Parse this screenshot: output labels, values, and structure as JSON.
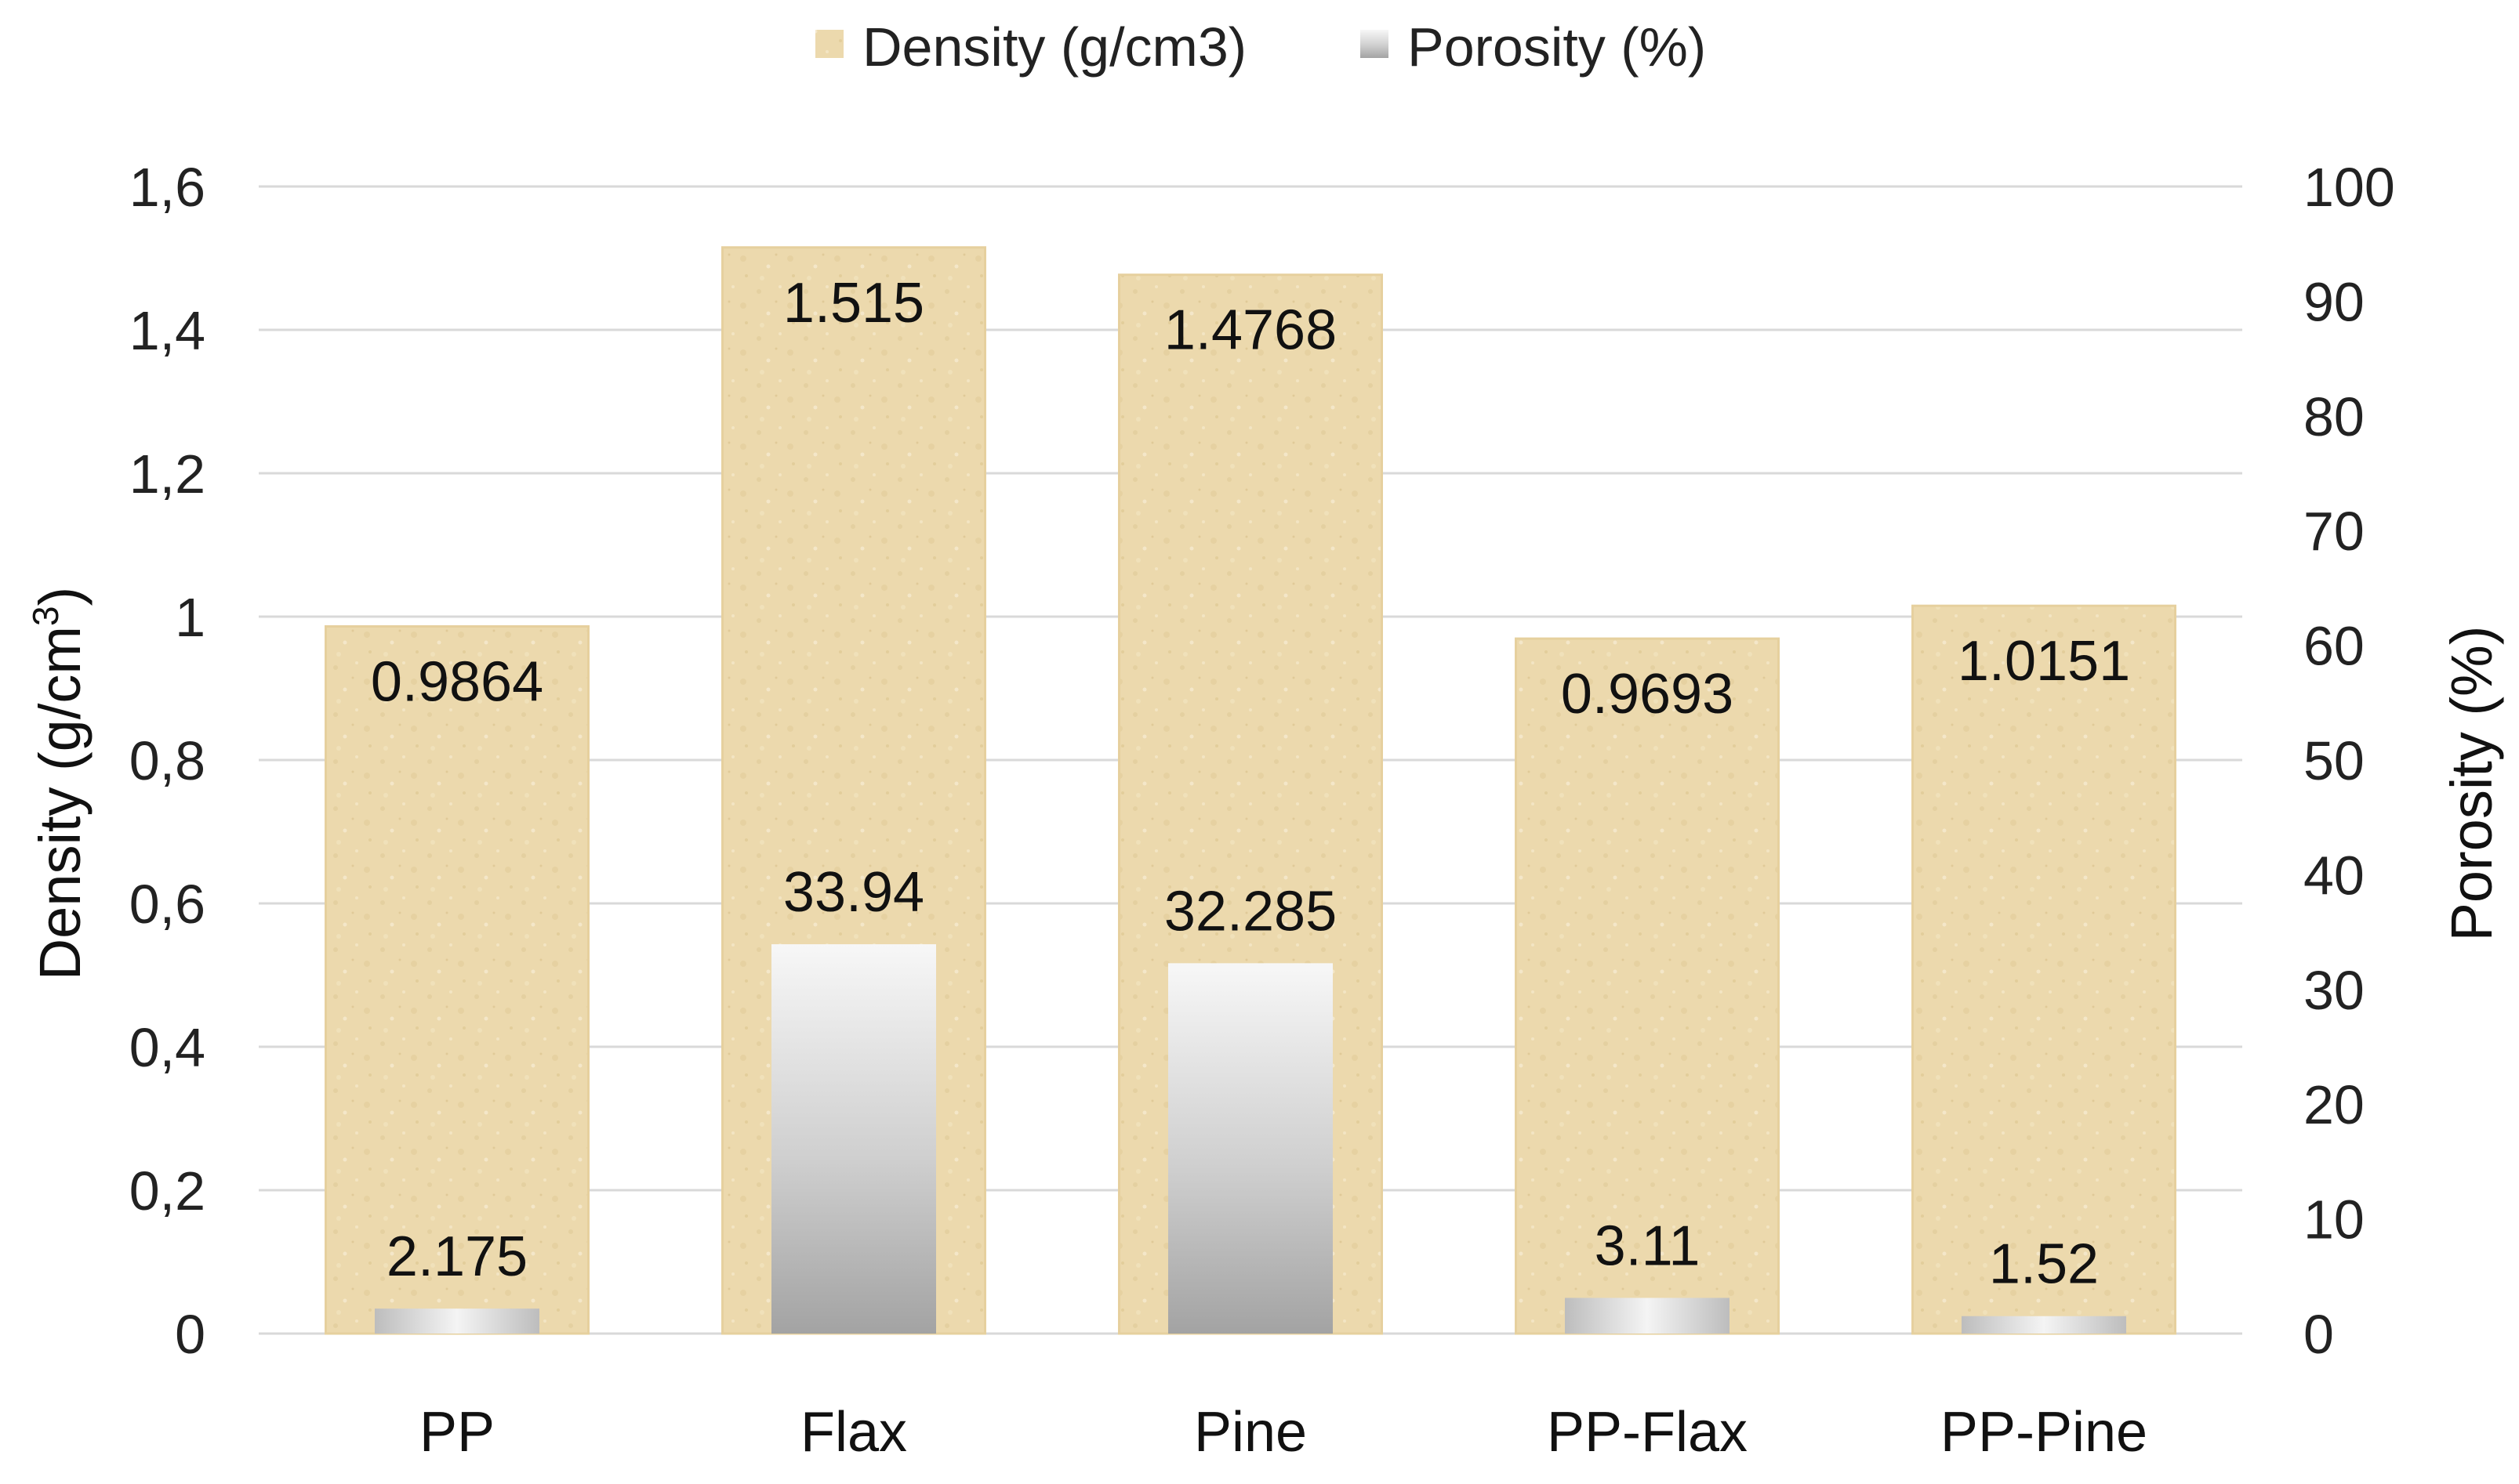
{
  "chart_data": {
    "type": "bar",
    "categories": [
      "PP",
      "Flax",
      "Pine",
      "PP-Flax",
      "PP-Pine"
    ],
    "series": [
      {
        "name": "Density (g/cm3)",
        "axis": "left",
        "values": [
          0.9864,
          1.515,
          1.4768,
          0.9693,
          1.0151
        ],
        "labels": [
          "0.9864",
          "1.515",
          "1.4768",
          "0.9693",
          "1.0151"
        ],
        "color": "#ecd9ad"
      },
      {
        "name": "Porosity (%)",
        "axis": "right",
        "values": [
          2.175,
          33.94,
          32.285,
          3.11,
          1.52
        ],
        "labels": [
          "2.175",
          "33.94",
          "32.285",
          "3.11",
          "1.52"
        ],
        "color": "#b0b0b0"
      }
    ],
    "ylabel_left": {
      "main": "Density (g/cm",
      "sup": "3",
      "close": ")"
    },
    "ylabel_right": "Porosity (%)",
    "yticks_left": [
      "0",
      "0,2",
      "0,4",
      "0,6",
      "0,8",
      "1",
      "1,2",
      "1,4",
      "1,6"
    ],
    "yticks_right": [
      "0",
      "10",
      "20",
      "30",
      "40",
      "50",
      "60",
      "70",
      "80",
      "90",
      "100"
    ],
    "ylim_left": [
      0,
      1.6
    ],
    "ylim_right": [
      0,
      100
    ],
    "grid": true,
    "legend_position": "top"
  }
}
